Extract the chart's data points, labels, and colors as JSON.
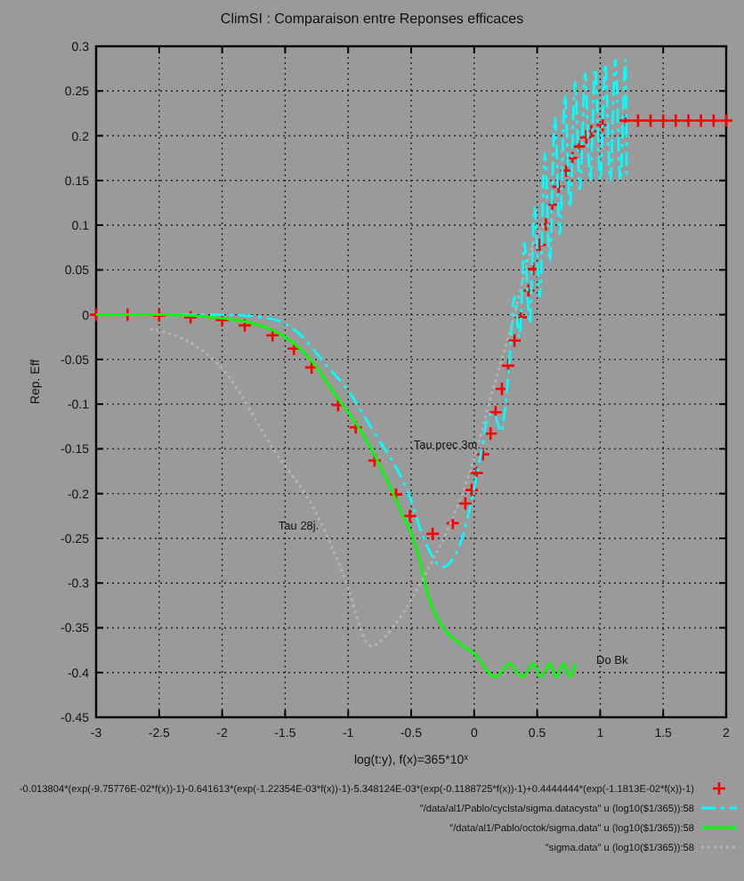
{
  "chart_data": {
    "type": "line",
    "title": "ClimSI : Comparaison entre Reponses efficaces",
    "xlabel": "log(t:y), f(x)=365*10$^{x}$",
    "ylabel": "Rep. Eff",
    "xlim": [
      -3,
      2
    ],
    "xticks": [
      -3,
      -2.5,
      -2,
      -1.5,
      -1,
      -0.5,
      0,
      0.5,
      1,
      1.5,
      2
    ],
    "ylim": [
      -0.45,
      0.3
    ],
    "yticks": [
      -0.45,
      -0.4,
      -0.35,
      -0.3,
      -0.25,
      -0.2,
      -0.15,
      -0.1,
      -0.05,
      0,
      0.05,
      0.1,
      0.15,
      0.2,
      0.25,
      0.3
    ],
    "grid": true,
    "legend": "bottom",
    "series": [
      {
        "name": "-0.013804*(exp(-9.75776E-02*f(x))-1)-0.641613*(exp(-1.22354E-03*f(x))-1)-5.348124E-03*(exp(-0.1188725*f(x))-1)+0.4444444*(exp(-1.1813E-02*f(x))-1)",
        "type": "scatter",
        "marker": "cross",
        "color": "#ff0000",
        "x": [
          -3,
          -2.75,
          -2.5,
          -2.25,
          -2,
          -1.82,
          -1.6,
          -1.43,
          -1.29,
          -1.08,
          -0.94,
          -0.79,
          -0.62,
          -0.51,
          -0.33,
          -0.17,
          -0.07,
          -0.02,
          0.02,
          0.07,
          0.13,
          0.17,
          0.22,
          0.27,
          0.32,
          0.37,
          0.43,
          0.47,
          0.52,
          0.57,
          0.62,
          0.67,
          0.73,
          0.78,
          0.83,
          0.89,
          0.93,
          1.02,
          1.2,
          1.3,
          1.4,
          1.5,
          1.6,
          1.7,
          1.8,
          1.9,
          2
        ],
        "values": [
          0,
          0,
          -0.001,
          -0.003,
          -0.006,
          -0.012,
          -0.023,
          -0.038,
          -0.059,
          -0.101,
          -0.126,
          -0.163,
          -0.201,
          -0.225,
          -0.245,
          -0.233,
          -0.211,
          -0.196,
          -0.177,
          -0.156,
          -0.133,
          -0.109,
          -0.083,
          -0.057,
          -0.029,
          -0.003,
          0.027,
          0.051,
          0.078,
          0.101,
          0.123,
          0.143,
          0.161,
          0.175,
          0.188,
          0.198,
          0.205,
          0.212,
          0.217,
          0.217,
          0.217,
          0.217,
          0.217,
          0.217,
          0.217,
          0.217,
          0.217
        ]
      },
      {
        "name": "\"/data/al1/Pablo/cyclsta/sigma.datacysta\" u (log10($1/365)):58",
        "line_style": "dashed",
        "color": "#00ffff",
        "x": [
          -3,
          -2,
          -1.6,
          -1.4,
          -1.17,
          -1,
          -0.81,
          -0.53,
          -0.37,
          -0.25,
          -0.12,
          -0.03,
          0.06,
          0.11,
          0.15,
          0.18,
          0.21,
          0.28,
          0.32,
          0.36,
          0.4,
          0.44,
          0.48,
          0.52,
          0.56,
          0.6,
          0.64,
          0.68,
          0.72,
          0.76,
          0.8,
          0.84,
          0.88,
          0.92,
          0.96,
          1,
          1.04,
          1.08,
          1.12,
          1.16,
          1.2,
          1.21
        ],
        "values": [
          0,
          0,
          -0.005,
          -0.02,
          -0.057,
          -0.085,
          -0.128,
          -0.197,
          -0.26,
          -0.282,
          -0.259,
          -0.214,
          -0.151,
          -0.114,
          -0.11,
          -0.118,
          -0.131,
          -0.052,
          0.02,
          -0.025,
          0.08,
          -0.01,
          0.12,
          0.02,
          0.18,
          0.06,
          0.22,
          0.09,
          0.245,
          0.12,
          0.26,
          0.14,
          0.27,
          0.15,
          0.275,
          0.15,
          0.28,
          0.15,
          0.285,
          0.15,
          0.285,
          0.15
        ]
      },
      {
        "name": "\"/data/al1/Pablo/octok/sigma.data\" u (log10($1/365)):58",
        "line_style": "solid",
        "color": "#00ff00",
        "x": [
          -3,
          -2.5,
          -2,
          -1.75,
          -1.5,
          -1.3,
          -1.1,
          -0.9,
          -0.78,
          -0.58,
          -0.45,
          -0.36,
          -0.24,
          -0.09,
          0,
          0.17,
          0.28,
          0.38,
          0.47,
          0.53,
          0.6,
          0.65,
          0.71,
          0.76,
          0.8
        ],
        "values": [
          0,
          0,
          -0.004,
          -0.01,
          -0.025,
          -0.05,
          -0.09,
          -0.13,
          -0.16,
          -0.22,
          -0.265,
          -0.317,
          -0.351,
          -0.37,
          -0.379,
          -0.405,
          -0.39,
          -0.405,
          -0.39,
          -0.405,
          -0.39,
          -0.405,
          -0.39,
          -0.405,
          -0.39
        ]
      },
      {
        "name": "\"sigma.data\" u (log10($1/365)):58",
        "line_style": "dotted",
        "color": "#b4b4b4",
        "x": [
          -2.57,
          -2.22,
          -2,
          -1.59,
          -1.26,
          -1.03,
          -0.82,
          -0.62,
          -0.4,
          -0.2,
          -0.03,
          0.15,
          0.3,
          0.45,
          0.55
        ],
        "values": [
          -0.016,
          -0.034,
          -0.06,
          -0.151,
          -0.22,
          -0.293,
          -0.37,
          -0.345,
          -0.293,
          -0.237,
          -0.174,
          -0.083,
          -0.01,
          0.071,
          0.1
        ]
      }
    ],
    "annotations": [
      {
        "text": "Tau prec 3m.",
        "x": -0.65,
        "y": -0.15
      },
      {
        "text": "Tau 28j.",
        "x": -1.26,
        "y": -0.22
      },
      {
        "text": "Do Bk",
        "x": 0.8,
        "y": -0.39
      }
    ]
  }
}
